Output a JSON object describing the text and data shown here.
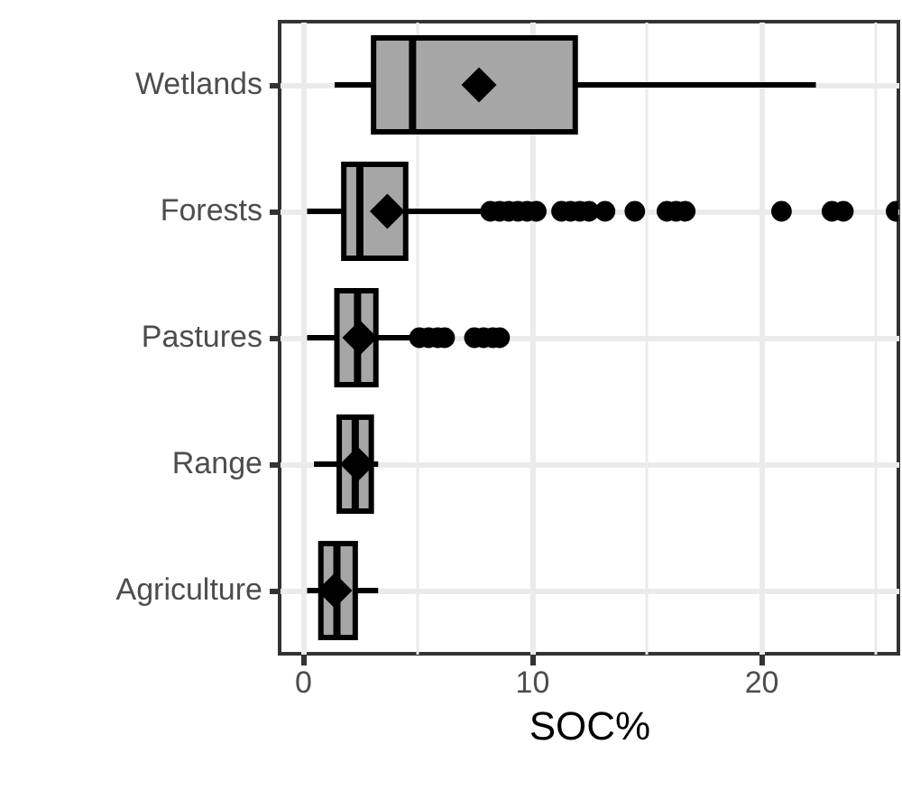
{
  "chart_data": {
    "type": "box",
    "orientation": "horizontal",
    "categories": [
      "Wetlands",
      "Forests",
      "Pastures",
      "Range",
      "Agriculture"
    ],
    "boxes": [
      {
        "low": 1.4,
        "q1": 3.1,
        "median": 4.8,
        "q3": 11.9,
        "high": 22.4,
        "mean": 7.7
      },
      {
        "low": 0.2,
        "q1": 1.8,
        "median": 2.5,
        "q3": 4.5,
        "high": 8,
        "mean": 3.7,
        "outliers": [
          8.2,
          8.6,
          9.0,
          9.4,
          9.8,
          10.2,
          11.3,
          11.7,
          12.1,
          12.5,
          13.2,
          14.5,
          15.9,
          16.3,
          16.7,
          20.9,
          23.1,
          23.6,
          25.9
        ]
      },
      {
        "low": 0.2,
        "q1": 1.5,
        "median": 2.4,
        "q3": 3.2,
        "high": 4.7,
        "mean": 2.5,
        "outliers": [
          5.1,
          5.5,
          5.9,
          6.2,
          7.5,
          7.9,
          8.3,
          8.6
        ]
      },
      {
        "low": 0.5,
        "q1": 1.6,
        "median": 2.3,
        "q3": 3.0,
        "high": 3.3,
        "mean": 2.4
      },
      {
        "low": 0.2,
        "q1": 0.8,
        "median": 1.5,
        "q3": 2.3,
        "high": 3.3,
        "mean": 1.4
      }
    ],
    "color": "#a6a6a6",
    "xlabel": "SOC%",
    "xlim": [
      -1,
      26
    ],
    "xticks": [
      0,
      {
        "value": 5,
        "label": null
      },
      10,
      {
        "value": 15,
        "label": null
      },
      20,
      {
        "value": 25,
        "label": null
      }
    ],
    "grid": true
  }
}
